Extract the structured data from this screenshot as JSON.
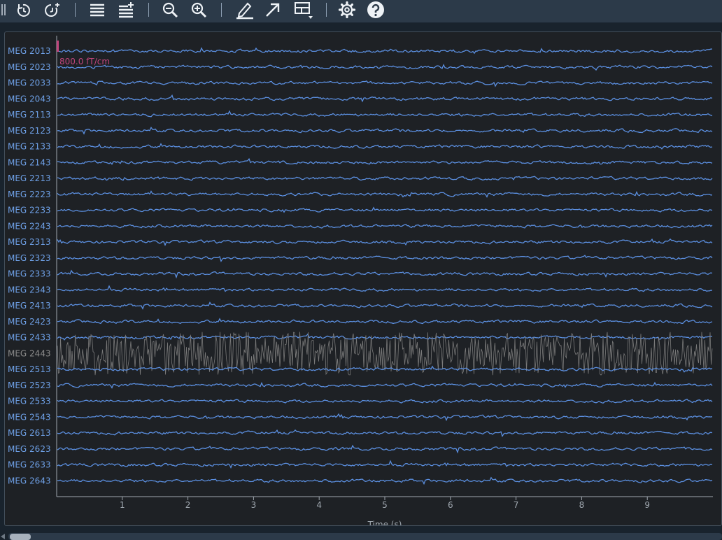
{
  "toolbar": {
    "buttons": [
      {
        "name": "time-back-icon"
      },
      {
        "name": "time-forward-icon"
      },
      {
        "name": "fewer-channels-icon"
      },
      {
        "name": "more-channels-icon"
      },
      {
        "name": "zoom-out-icon"
      },
      {
        "name": "zoom-in-icon"
      },
      {
        "name": "annotation-pen-icon"
      },
      {
        "name": "projector-arrow-icon"
      },
      {
        "name": "overview-layout-icon"
      },
      {
        "name": "settings-gear-icon"
      },
      {
        "name": "help-icon"
      }
    ]
  },
  "plot": {
    "scale_bar_label": "800.0 fT/cm",
    "xlabel": "Time (s)",
    "xticks": [
      "1",
      "2",
      "3",
      "4",
      "5",
      "6",
      "7",
      "8",
      "9"
    ],
    "x_range": [
      0,
      10
    ],
    "trace_color": "#5b8fe0",
    "bad_channel_color": "#7a7a7a",
    "label_color": "#6ea0e6",
    "bad_label_color": "#8a8a8a",
    "scale_bar_color": "#c0457c",
    "background": "#1e2125",
    "axis_color": "#a0a8b0",
    "channels": [
      {
        "name": "MEG 2013",
        "bad": false
      },
      {
        "name": "MEG 2023",
        "bad": false
      },
      {
        "name": "MEG 2033",
        "bad": false
      },
      {
        "name": "MEG 2043",
        "bad": false
      },
      {
        "name": "MEG 2113",
        "bad": false
      },
      {
        "name": "MEG 2123",
        "bad": false
      },
      {
        "name": "MEG 2133",
        "bad": false
      },
      {
        "name": "MEG 2143",
        "bad": false
      },
      {
        "name": "MEG 2213",
        "bad": false
      },
      {
        "name": "MEG 2223",
        "bad": false
      },
      {
        "name": "MEG 2233",
        "bad": false
      },
      {
        "name": "MEG 2243",
        "bad": false
      },
      {
        "name": "MEG 2313",
        "bad": false
      },
      {
        "name": "MEG 2323",
        "bad": false
      },
      {
        "name": "MEG 2333",
        "bad": false
      },
      {
        "name": "MEG 2343",
        "bad": false
      },
      {
        "name": "MEG 2413",
        "bad": false
      },
      {
        "name": "MEG 2423",
        "bad": false
      },
      {
        "name": "MEG 2433",
        "bad": false
      },
      {
        "name": "MEG 2443",
        "bad": true
      },
      {
        "name": "MEG 2513",
        "bad": false
      },
      {
        "name": "MEG 2523",
        "bad": false
      },
      {
        "name": "MEG 2533",
        "bad": false
      },
      {
        "name": "MEG 2543",
        "bad": false
      },
      {
        "name": "MEG 2613",
        "bad": false
      },
      {
        "name": "MEG 2623",
        "bad": false
      },
      {
        "name": "MEG 2633",
        "bad": false
      },
      {
        "name": "MEG 2643",
        "bad": false
      }
    ]
  }
}
